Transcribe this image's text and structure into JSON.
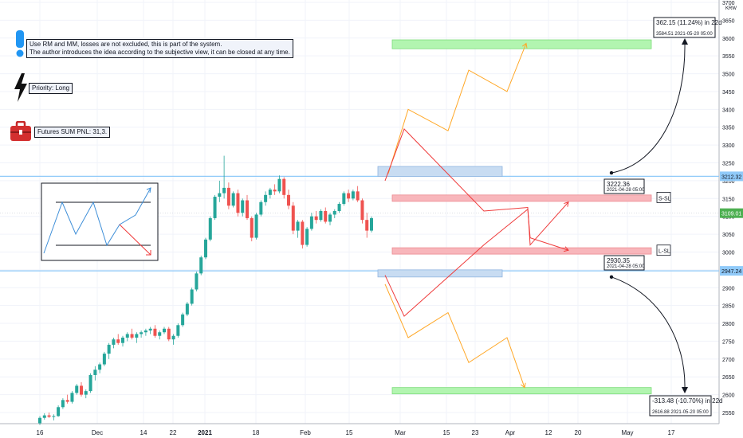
{
  "notes": {
    "disclaimer_line1": "Use RM and MM, losses are not excluded, this is part of the system.",
    "disclaimer_line2": "The author introduces the idea according to the subjective view, it can be closed at any time.",
    "priority": "Priority: Long",
    "futures": "Futures SUM PNL: 31,3."
  },
  "callouts": {
    "top_gain": "362.15 (11.24%) in 22d",
    "top_gain_sub": "3584.51     2021-05-20  05:00",
    "upper_point": "3222.36",
    "upper_point_sub": "2021-04-28 05:00",
    "lower_point": "2930.35",
    "lower_point_sub": "2021-04-28 05:00",
    "bottom_loss": "-313.48 (-10.70%) in 22d",
    "bottom_loss_sub": "2616.88     2021-05-20  05:00"
  },
  "labels": {
    "s_sl": "S-SL",
    "l_sl": "L-SL"
  },
  "colors": {
    "up": "#26a69a",
    "down": "#ef5350",
    "level_line": "#90caf9",
    "target_zone": "#b2f5b0",
    "stop_zone": "#f8b6bb",
    "entry_zone": "#c8dcf2",
    "path_orange": "#ffa726",
    "path_red": "#ef3b3b"
  },
  "icons": [
    "exclamation-icon",
    "lightning-icon",
    "briefcase-icon"
  ],
  "chart_data": {
    "type": "candlestick",
    "currency_label": "KRW",
    "y_ticks": [
      2550,
      2600,
      2650,
      2700,
      2750,
      2800,
      2850,
      2900,
      2950,
      3000,
      3050,
      3100,
      3150,
      3200,
      3250,
      3300,
      3350,
      3400,
      3450,
      3500,
      3550,
      3600,
      3650,
      3700
    ],
    "x_ticks": [
      "16",
      "Dec",
      "14",
      "22",
      "2021",
      "18",
      "Feb",
      "15",
      "Mar",
      "15",
      "23",
      "Apr",
      "12",
      "20",
      "May",
      "17"
    ],
    "price_labels": [
      "3212.32",
      "3109.01",
      "2947.24"
    ],
    "level_lines": [
      3212.32,
      2947.24
    ],
    "current_price": 3109.01,
    "candles": [
      [
        2520,
        2540,
        2515,
        2535
      ],
      [
        2535,
        2548,
        2530,
        2542
      ],
      [
        2542,
        2550,
        2535,
        2538
      ],
      [
        2538,
        2545,
        2528,
        2540
      ],
      [
        2540,
        2570,
        2538,
        2565
      ],
      [
        2565,
        2590,
        2560,
        2585
      ],
      [
        2585,
        2600,
        2575,
        2580
      ],
      [
        2580,
        2610,
        2575,
        2605
      ],
      [
        2605,
        2630,
        2600,
        2625
      ],
      [
        2625,
        2635,
        2595,
        2600
      ],
      [
        2600,
        2615,
        2590,
        2610
      ],
      [
        2610,
        2660,
        2605,
        2655
      ],
      [
        2655,
        2680,
        2640,
        2670
      ],
      [
        2670,
        2690,
        2660,
        2685
      ],
      [
        2685,
        2720,
        2680,
        2715
      ],
      [
        2715,
        2745,
        2700,
        2740
      ],
      [
        2740,
        2760,
        2730,
        2755
      ],
      [
        2755,
        2770,
        2740,
        2745
      ],
      [
        2745,
        2765,
        2735,
        2760
      ],
      [
        2760,
        2775,
        2750,
        2770
      ],
      [
        2770,
        2785,
        2755,
        2760
      ],
      [
        2760,
        2775,
        2745,
        2770
      ],
      [
        2770,
        2780,
        2760,
        2775
      ],
      [
        2775,
        2785,
        2765,
        2780
      ],
      [
        2780,
        2790,
        2770,
        2785
      ],
      [
        2785,
        2795,
        2760,
        2765
      ],
      [
        2765,
        2780,
        2755,
        2775
      ],
      [
        2775,
        2790,
        2770,
        2785
      ],
      [
        2785,
        2790,
        2750,
        2755
      ],
      [
        2755,
        2770,
        2740,
        2765
      ],
      [
        2765,
        2800,
        2760,
        2795
      ],
      [
        2795,
        2830,
        2790,
        2825
      ],
      [
        2825,
        2860,
        2820,
        2855
      ],
      [
        2855,
        2900,
        2850,
        2895
      ],
      [
        2895,
        2945,
        2890,
        2940
      ],
      [
        2940,
        2990,
        2935,
        2985
      ],
      [
        2985,
        3040,
        2980,
        3035
      ],
      [
        3035,
        3100,
        3030,
        3095
      ],
      [
        3095,
        3160,
        3090,
        3155
      ],
      [
        3155,
        3200,
        3140,
        3165
      ],
      [
        3165,
        3270,
        3150,
        3180
      ],
      [
        3180,
        3195,
        3120,
        3130
      ],
      [
        3130,
        3170,
        3125,
        3165
      ],
      [
        3165,
        3175,
        3100,
        3110
      ],
      [
        3110,
        3150,
        3100,
        3145
      ],
      [
        3145,
        3160,
        3090,
        3095
      ],
      [
        3095,
        3100,
        3030,
        3040
      ],
      [
        3040,
        3110,
        3035,
        3105
      ],
      [
        3105,
        3145,
        3100,
        3140
      ],
      [
        3140,
        3170,
        3130,
        3160
      ],
      [
        3160,
        3180,
        3150,
        3175
      ],
      [
        3175,
        3190,
        3160,
        3170
      ],
      [
        3170,
        3215,
        3165,
        3205
      ],
      [
        3205,
        3210,
        3150,
        3160
      ],
      [
        3160,
        3175,
        3120,
        3130
      ],
      [
        3130,
        3140,
        3050,
        3060
      ],
      [
        3060,
        3090,
        3040,
        3085
      ],
      [
        3085,
        3090,
        3010,
        3020
      ],
      [
        3020,
        3070,
        3015,
        3065
      ],
      [
        3065,
        3110,
        3060,
        3100
      ],
      [
        3100,
        3115,
        3080,
        3090
      ],
      [
        3090,
        3120,
        3085,
        3115
      ],
      [
        3115,
        3125,
        3080,
        3085
      ],
      [
        3085,
        3110,
        3075,
        3105
      ],
      [
        3105,
        3120,
        3095,
        3115
      ],
      [
        3115,
        3140,
        3110,
        3135
      ],
      [
        3135,
        3170,
        3130,
        3165
      ],
      [
        3165,
        3175,
        3140,
        3150
      ],
      [
        3150,
        3175,
        3145,
        3170
      ],
      [
        3170,
        3185,
        3140,
        3145
      ],
      [
        3145,
        3150,
        3080,
        3090
      ],
      [
        3090,
        3110,
        3040,
        3060
      ],
      [
        3060,
        3100,
        3055,
        3095
      ]
    ],
    "boxes": [
      {
        "kind": "target",
        "from": "2021-03-01",
        "to": "2021-05-10",
        "low": 3570,
        "high": 3595
      },
      {
        "kind": "entry",
        "from": "2021-03-01",
        "to": "2021-04-06",
        "low": 3212,
        "high": 3240
      },
      {
        "kind": "stop",
        "from": "2021-03-01",
        "to": "2021-05-10",
        "low": 3145,
        "high": 3160
      },
      {
        "kind": "stop",
        "from": "2021-03-01",
        "to": "2021-05-10",
        "low": 2997,
        "high": 3012
      },
      {
        "kind": "entry",
        "from": "2021-03-01",
        "to": "2021-04-06",
        "low": 2930,
        "high": 2950
      },
      {
        "kind": "target",
        "from": "2021-03-01",
        "to": "2021-05-10",
        "low": 2605,
        "high": 2620
      }
    ],
    "paths": [
      {
        "name": "bull-projection",
        "color": "orange",
        "points": [
          [
            0,
            3220
          ],
          [
            1,
            3400
          ],
          [
            2,
            3340
          ],
          [
            3,
            3510
          ],
          [
            4,
            3450
          ],
          [
            5,
            3585
          ]
        ]
      },
      {
        "name": "bull-red",
        "color": "red",
        "points": [
          [
            0,
            3200
          ],
          [
            1,
            3345
          ],
          [
            2,
            3115
          ],
          [
            3,
            3125
          ],
          [
            4,
            3020
          ],
          [
            5,
            3140
          ]
        ]
      },
      {
        "name": "bear-red",
        "color": "red",
        "points": [
          [
            0,
            2935
          ],
          [
            1,
            2820
          ],
          [
            2,
            3020
          ],
          [
            3,
            3120
          ],
          [
            4,
            3040
          ],
          [
            5,
            3005
          ]
        ]
      },
      {
        "name": "bear-projection",
        "color": "orange",
        "points": [
          [
            0,
            2910
          ],
          [
            1,
            2760
          ],
          [
            2,
            2830
          ],
          [
            3,
            2690
          ],
          [
            4,
            2760
          ],
          [
            5,
            2620
          ]
        ]
      }
    ]
  }
}
